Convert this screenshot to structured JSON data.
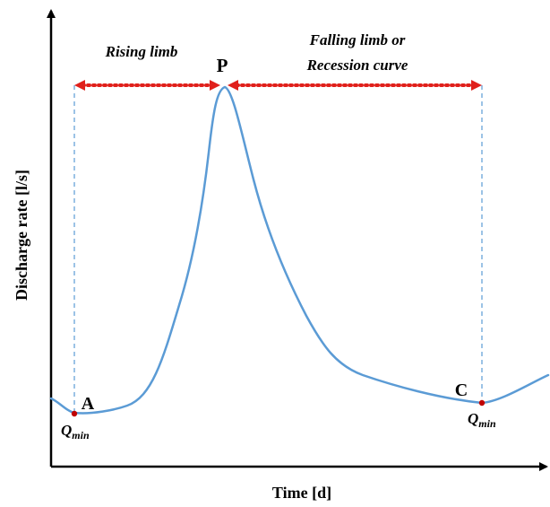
{
  "diagram": {
    "x_axis_label": "Time [d]",
    "y_axis_label": "Discharge rate [l/s]",
    "segments": {
      "rising": "Rising limb",
      "falling_line1": "Falling limb or",
      "falling_line2": "Recession curve"
    },
    "points": {
      "start": "A",
      "peak": "P",
      "end": "C"
    },
    "q_min": {
      "main": "Q",
      "sub": "min"
    },
    "colors": {
      "curve": "#5b9bd5",
      "arrow": "#e0201b",
      "guide": "#5b9bd5",
      "point": "#c00000",
      "axis": "#000000"
    }
  }
}
